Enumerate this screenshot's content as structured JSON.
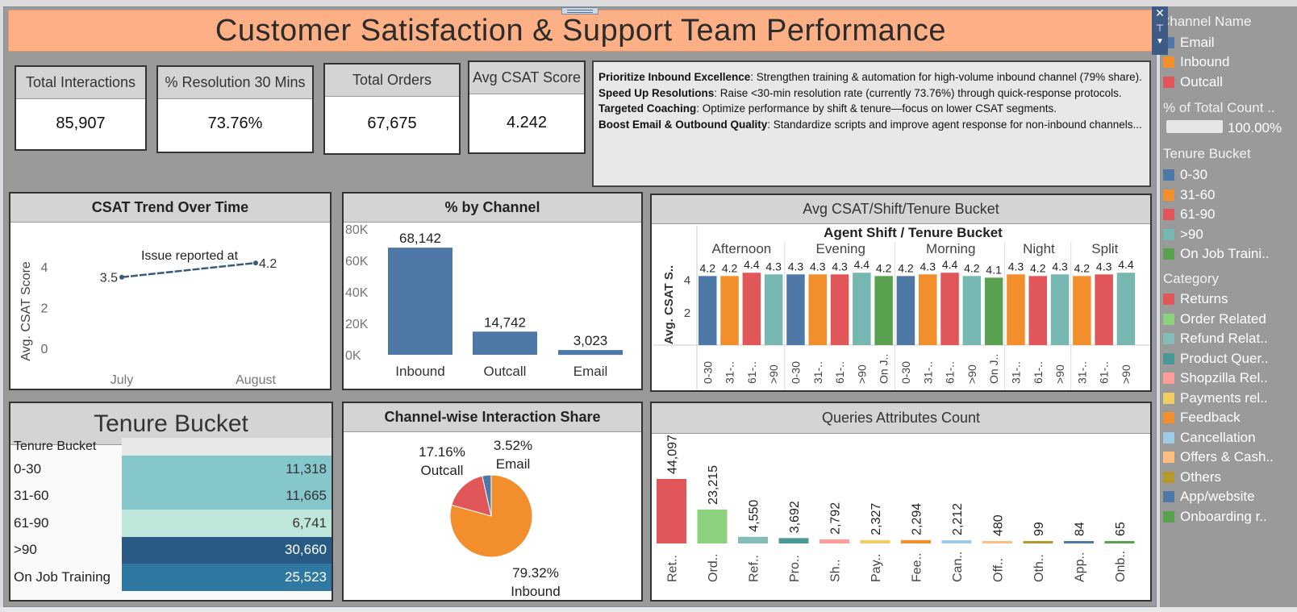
{
  "dashboard": {
    "title": "Customer Satisfaction & Support Team Performance"
  },
  "kpis": [
    {
      "label": "Total Interactions",
      "value": "85,907"
    },
    {
      "label": "% Resolution 30 Mins",
      "value": "73.76%"
    },
    {
      "label": "Total Orders",
      "value": "67,675"
    },
    {
      "label": "Avg CSAT Score",
      "value": "4.242"
    }
  ],
  "insights": [
    {
      "bold": "Prioritize Inbound Excellence",
      "text": ": Strengthen training & automation for high-volume inbound channel (79% share)."
    },
    {
      "bold": "Speed Up Resolutions",
      "text": ": Raise <30-min resolution rate (currently 73.76%) through quick-response protocols."
    },
    {
      "bold": "Targeted Coaching",
      "text": ": Optimize performance by shift & tenure—focus on lower CSAT segments."
    },
    {
      "bold": "Boost Email & Outbound Quality",
      "text": ": Standardize scripts and improve agent response for non-inbound channels..."
    }
  ],
  "panels": {
    "csat_trend": "CSAT Trend Over Time",
    "by_channel": "% by Channel",
    "shift_tenure": "Avg CSAT/Shift/Tenure Bucket",
    "tenure_bucket": "Tenure Bucket",
    "interaction_share": "Channel-wise Interaction Share",
    "queries": "Queries Attributes Count"
  },
  "chart_data": [
    {
      "id": "csat_trend",
      "type": "line",
      "title": "CSAT Trend Over Time",
      "annotation": "Issue reported at",
      "ylabel": "Avg. CSAT Score",
      "x": [
        "July",
        "August"
      ],
      "y": [
        3.5,
        4.2
      ],
      "value_labels": [
        "3.5",
        "4.2"
      ],
      "yticks": [
        "0",
        "2",
        "4"
      ],
      "ylim": [
        0,
        4.6
      ],
      "color": "#3b5a7a"
    },
    {
      "id": "by_channel",
      "type": "bar",
      "title": "% by Channel",
      "categories": [
        "Inbound",
        "Outcall",
        "Email"
      ],
      "values": [
        68142,
        14742,
        3023
      ],
      "value_labels": [
        "68,142",
        "14,742",
        "3,023"
      ],
      "yticks": [
        "0K",
        "20K",
        "40K",
        "60K",
        "80K"
      ],
      "ylim": [
        0,
        80000
      ],
      "color": "#4e79a7"
    },
    {
      "id": "shift_tenure",
      "type": "bar",
      "title": "Avg CSAT/Shift/Tenure Bucket",
      "header": "Agent Shift / Tenure Bucket",
      "ylabel": "Avg. CSAT S..",
      "yticks": [
        "2",
        "4"
      ],
      "ylim": [
        0,
        5.0
      ],
      "groups": [
        {
          "shift": "Afternoon",
          "bars": [
            {
              "cat": "0-30",
              "v": 4.2
            },
            {
              "cat": "31-..",
              "v": 4.2
            },
            {
              "cat": "61-..",
              "v": 4.4
            },
            {
              "cat": ">90",
              "v": 4.3
            }
          ]
        },
        {
          "shift": "Evening",
          "bars": [
            {
              "cat": "0-30",
              "v": 4.3
            },
            {
              "cat": "31-..",
              "v": 4.3
            },
            {
              "cat": "61-..",
              "v": 4.3
            },
            {
              "cat": ">90",
              "v": 4.4
            },
            {
              "cat": "On J..",
              "v": 4.2
            }
          ]
        },
        {
          "shift": "Morning",
          "bars": [
            {
              "cat": "0-30",
              "v": 4.2
            },
            {
              "cat": "31-..",
              "v": 4.3
            },
            {
              "cat": "61-..",
              "v": 4.4
            },
            {
              "cat": ">90",
              "v": 4.2
            },
            {
              "cat": "On J..",
              "v": 4.1
            }
          ]
        },
        {
          "shift": "Night",
          "bars": [
            {
              "cat": "31-..",
              "v": 4.3
            },
            {
              "cat": "61-..",
              "v": 4.2
            },
            {
              "cat": ">90",
              "v": 4.3
            }
          ]
        },
        {
          "shift": "Split",
          "bars": [
            {
              "cat": "31-..",
              "v": 4.2
            },
            {
              "cat": "61-..",
              "v": 4.3
            },
            {
              "cat": ">90",
              "v": 4.4
            }
          ]
        }
      ],
      "colors": {
        "0-30": "#4e79a7",
        "31-..": "#f28e2b",
        "61-..": "#e15759",
        ">90": "#76b7b2",
        "On J..": "#59a14f"
      }
    },
    {
      "id": "tenure_bucket",
      "type": "table",
      "title": "Tenure Bucket",
      "column": "Tenure Bucket",
      "rows": [
        {
          "label": "0-30",
          "value": "11,318",
          "color": "#86c7cb"
        },
        {
          "label": "31-60",
          "value": "11,665",
          "color": "#86c7cb"
        },
        {
          "label": "61-90",
          "value": "6,741",
          "color": "#bfe6da"
        },
        {
          "label": ">90",
          "value": "30,660",
          "color": "#285a85"
        },
        {
          "label": "On Job Training",
          "value": "25,523",
          "color": "#2f78a1"
        }
      ]
    },
    {
      "id": "interaction_share",
      "type": "pie",
      "title": "Channel-wise Interaction Share",
      "slices": [
        {
          "name": "Inbound",
          "value": 79.32,
          "label": "79.32%",
          "color": "#f28e2b"
        },
        {
          "name": "Outcall",
          "value": 17.16,
          "label": "17.16%",
          "color": "#e15759"
        },
        {
          "name": "Email",
          "value": 3.52,
          "label": "3.52%",
          "color": "#4e79a7"
        }
      ]
    },
    {
      "id": "queries",
      "type": "bar",
      "title": "Queries Attributes Count",
      "categories": [
        "Ret..",
        "Ord..",
        "Ref..",
        "Pro..",
        "Sh..",
        "Pay..",
        "Fee..",
        "Can..",
        "Off..",
        "Oth..",
        "App..",
        "Onb.."
      ],
      "values": [
        44097,
        23215,
        4550,
        3692,
        2792,
        2327,
        2294,
        2212,
        480,
        99,
        84,
        65
      ],
      "value_labels": [
        "44,097",
        "23,215",
        "4,550",
        "3,692",
        "2,792",
        "2,327",
        "2,294",
        "2,212",
        "480",
        "99",
        "84",
        "65"
      ],
      "colors": [
        "#e15759",
        "#8cd17d",
        "#86bcb6",
        "#499894",
        "#ff9d9a",
        "#f1ce63",
        "#f28e2b",
        "#a0cbe8",
        "#ffbe7d",
        "#b6992d",
        "#4e79a7",
        "#59a14f"
      ]
    }
  ],
  "legends": {
    "channel": {
      "title": "Channel Name",
      "items": [
        {
          "label": "Email",
          "color": "#4e79a7"
        },
        {
          "label": "Inbound",
          "color": "#f28e2b"
        },
        {
          "label": "Outcall",
          "color": "#e15759"
        }
      ]
    },
    "pct": {
      "title": "% of Total Count ..",
      "value": "100.00%"
    },
    "tenure": {
      "title": "Tenure Bucket",
      "items": [
        {
          "label": "0-30",
          "color": "#4e79a7"
        },
        {
          "label": "31-60",
          "color": "#f28e2b"
        },
        {
          "label": "61-90",
          "color": "#e15759"
        },
        {
          "label": ">90",
          "color": "#76b7b2"
        },
        {
          "label": "On Job Traini..",
          "color": "#59a14f"
        }
      ]
    },
    "category": {
      "title": "Category",
      "items": [
        {
          "label": "Returns",
          "color": "#e15759"
        },
        {
          "label": "Order Related",
          "color": "#8cd17d"
        },
        {
          "label": "Refund Relat..",
          "color": "#86bcb6"
        },
        {
          "label": "Product Quer..",
          "color": "#499894"
        },
        {
          "label": "Shopzilla Rel..",
          "color": "#ff9d9a"
        },
        {
          "label": "Payments rel..",
          "color": "#f1ce63"
        },
        {
          "label": "Feedback",
          "color": "#f28e2b"
        },
        {
          "label": "Cancellation",
          "color": "#a0cbe8"
        },
        {
          "label": "Offers & Cash..",
          "color": "#ffbe7d"
        },
        {
          "label": "Others",
          "color": "#b6992d"
        },
        {
          "label": "App/website",
          "color": "#4e79a7"
        },
        {
          "label": "Onboarding r..",
          "color": "#59a14f"
        }
      ]
    }
  }
}
